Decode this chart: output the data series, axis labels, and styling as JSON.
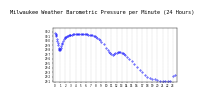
{
  "title": "Milwaukee Weather Barometric Pressure per Minute (24 Hours)",
  "title_fontsize": 3.8,
  "background_color": "#ffffff",
  "plot_color": "#0000ff",
  "ylim": [
    29.08,
    30.28
  ],
  "xlim": [
    -0.5,
    23.9
  ],
  "yticks": [
    29.1,
    29.2,
    29.3,
    29.4,
    29.5,
    29.6,
    29.7,
    29.8,
    29.9,
    30.0,
    30.1,
    30.2
  ],
  "ytick_labels": [
    "29.1",
    "29.2",
    "29.3",
    "29.4",
    "29.5",
    "29.6",
    "29.7",
    "29.8",
    "29.9",
    "30.0",
    "30.1",
    "30.2"
  ],
  "xticks": [
    0,
    1,
    2,
    3,
    4,
    5,
    6,
    7,
    8,
    9,
    10,
    11,
    12,
    13,
    14,
    15,
    16,
    17,
    18,
    19,
    20,
    21,
    22,
    23
  ],
  "xtick_labels": [
    "0",
    "1",
    "2",
    "3",
    "4",
    "5",
    "6",
    "7",
    "8",
    "9",
    "10",
    "11",
    "12",
    "13",
    "14",
    "15",
    "16",
    "17",
    "18",
    "19",
    "20",
    "21",
    "22",
    "23"
  ],
  "grid_color": "#aaaaaa",
  "marker_size": 0.7,
  "hours": [
    0,
    0.08,
    0.17,
    0.25,
    0.33,
    0.42,
    0.5,
    0.58,
    0.67,
    0.75,
    0.83,
    0.92,
    1.0,
    1.08,
    1.17,
    1.25,
    1.33,
    1.5,
    1.67,
    1.83,
    2.0,
    2.17,
    2.33,
    2.5,
    2.67,
    2.83,
    3.0,
    3.25,
    3.5,
    3.75,
    4.0,
    4.25,
    4.5,
    4.75,
    5.0,
    5.25,
    5.5,
    5.75,
    6.0,
    6.25,
    6.5,
    6.75,
    7.0,
    7.25,
    7.5,
    7.75,
    8.0,
    8.25,
    8.5,
    8.75,
    9.0,
    9.5,
    10.0,
    10.25,
    10.5,
    10.75,
    11.0,
    11.25,
    11.5,
    11.75,
    12.0,
    12.25,
    12.5,
    12.75,
    13.0,
    13.25,
    13.5,
    13.75,
    14.0,
    14.5,
    15.0,
    15.5,
    16.0,
    16.5,
    17.0,
    17.5,
    18.0,
    18.5,
    19.0,
    19.5,
    20.0,
    20.5,
    21.0,
    21.5,
    22.0,
    22.5,
    23.0,
    23.5
  ],
  "pressures": [
    30.18,
    30.16,
    30.14,
    30.1,
    30.05,
    30.0,
    29.95,
    29.9,
    29.85,
    29.82,
    29.8,
    29.8,
    29.82,
    29.85,
    29.88,
    29.92,
    29.96,
    30.0,
    30.03,
    30.06,
    30.08,
    30.09,
    30.1,
    30.11,
    30.12,
    30.13,
    30.14,
    30.14,
    30.15,
    30.15,
    30.16,
    30.16,
    30.16,
    30.16,
    30.16,
    30.16,
    30.16,
    30.16,
    30.15,
    30.15,
    30.14,
    30.14,
    30.13,
    30.12,
    30.11,
    30.1,
    30.08,
    30.06,
    30.04,
    30.02,
    29.98,
    29.92,
    29.85,
    29.8,
    29.75,
    29.72,
    29.7,
    29.68,
    29.7,
    29.72,
    29.74,
    29.75,
    29.76,
    29.75,
    29.74,
    29.72,
    29.7,
    29.68,
    29.65,
    29.6,
    29.55,
    29.48,
    29.42,
    29.36,
    29.3,
    29.24,
    29.2,
    29.18,
    29.16,
    29.14,
    29.12,
    29.11,
    29.1,
    29.1,
    29.1,
    29.1,
    29.22,
    29.25
  ]
}
